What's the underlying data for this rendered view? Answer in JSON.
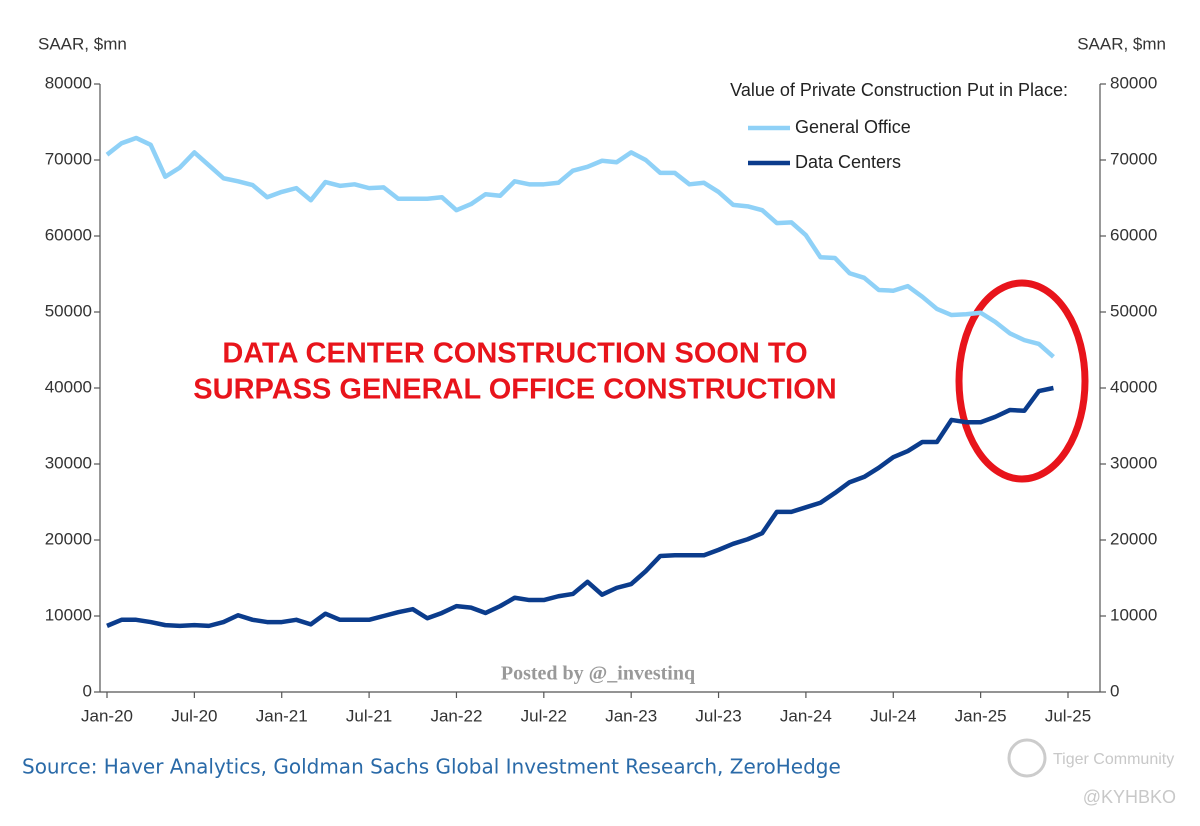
{
  "chart_data": {
    "type": "line",
    "y_label": "SAAR, $mn",
    "y2_label": "SAAR, $mn",
    "legend_title": "Value of Private Construction Put in Place:",
    "annotation": [
      "DATA CENTER CONSTRUCTION SOON TO",
      "SURPASS GENERAL OFFICE CONSTRUCTION"
    ],
    "source": "Source: Haver Analytics, Goldman Sachs Global Investment Research, ZeroHedge",
    "credit": "Posted by @_investinq",
    "watermark": "Tiger Community",
    "handle": "@KYHBKO",
    "x": [
      "2020-01",
      "2020-02",
      "2020-03",
      "2020-04",
      "2020-05",
      "2020-06",
      "2020-07",
      "2020-08",
      "2020-09",
      "2020-10",
      "2020-11",
      "2020-12",
      "2021-01",
      "2021-02",
      "2021-03",
      "2021-04",
      "2021-05",
      "2021-06",
      "2021-07",
      "2021-08",
      "2021-09",
      "2021-10",
      "2021-11",
      "2021-12",
      "2022-01",
      "2022-02",
      "2022-03",
      "2022-04",
      "2022-05",
      "2022-06",
      "2022-07",
      "2022-08",
      "2022-09",
      "2022-10",
      "2022-11",
      "2022-12",
      "2023-01",
      "2023-02",
      "2023-03",
      "2023-04",
      "2023-05",
      "2023-06",
      "2023-07",
      "2023-08",
      "2023-09",
      "2023-10",
      "2023-11",
      "2023-12",
      "2024-01",
      "2024-02",
      "2024-03",
      "2024-04",
      "2024-05",
      "2024-06",
      "2024-07",
      "2024-08",
      "2024-09",
      "2024-10",
      "2024-11",
      "2024-12",
      "2025-01",
      "2025-02",
      "2025-03",
      "2025-04",
      "2025-05",
      "2025-06"
    ],
    "series": [
      {
        "name": "General Office",
        "color": "#8fd1f7",
        "values": [
          70700,
          72200,
          72900,
          72000,
          67800,
          69000,
          71000,
          69300,
          67600,
          67200,
          66700,
          65100,
          65800,
          66300,
          64700,
          67100,
          66600,
          66800,
          66300,
          66400,
          64900,
          64900,
          64900,
          65100,
          63400,
          64200,
          65500,
          65300,
          67200,
          66800,
          66800,
          67000,
          68600,
          69100,
          69900,
          69700,
          71000,
          70000,
          68300,
          68300,
          66800,
          67000,
          65800,
          64100,
          63900,
          63400,
          61700,
          61800,
          60100,
          57200,
          57100,
          55100,
          54500,
          52900,
          52800,
          53400,
          52000,
          50400,
          49600,
          49700,
          49900,
          48700,
          47200,
          46300,
          45800,
          44100
        ]
      },
      {
        "name": "Data Centers",
        "color": "#0b3c8c",
        "values": [
          8700,
          9500,
          9500,
          9200,
          8800,
          8700,
          8800,
          8700,
          9200,
          10100,
          9500,
          9200,
          9200,
          9500,
          8900,
          10300,
          9500,
          9500,
          9500,
          10000,
          10500,
          10900,
          9700,
          10400,
          11300,
          11100,
          10400,
          11300,
          12400,
          12100,
          12100,
          12600,
          12900,
          14500,
          12800,
          13700,
          14200,
          15900,
          17900,
          18000,
          18000,
          18000,
          18700,
          19500,
          20100,
          20900,
          23700,
          23700,
          24300,
          24900,
          26200,
          27600,
          28300,
          29500,
          30900,
          31700,
          32900,
          32900,
          35800,
          35500,
          35500,
          36200,
          37100,
          37000,
          39600,
          40000
        ]
      }
    ],
    "xlim": [
      "2020-01",
      "2025-07"
    ],
    "xticks": [
      {
        "value": "2020-01",
        "label": "Jan-20"
      },
      {
        "value": "2020-07",
        "label": "Jul-20"
      },
      {
        "value": "2021-01",
        "label": "Jan-21"
      },
      {
        "value": "2021-07",
        "label": "Jul-21"
      },
      {
        "value": "2022-01",
        "label": "Jan-22"
      },
      {
        "value": "2022-07",
        "label": "Jul-22"
      },
      {
        "value": "2023-01",
        "label": "Jan-23"
      },
      {
        "value": "2023-07",
        "label": "Jul-23"
      },
      {
        "value": "2024-01",
        "label": "Jan-24"
      },
      {
        "value": "2024-07",
        "label": "Jul-24"
      },
      {
        "value": "2025-01",
        "label": "Jan-25"
      },
      {
        "value": "2025-07",
        "label": "Jul-25"
      }
    ],
    "ylim": [
      0,
      80000
    ],
    "yticks": [
      0,
      10000,
      20000,
      30000,
      40000,
      50000,
      60000,
      70000,
      80000
    ],
    "y2lim": [
      0,
      80000
    ],
    "y2ticks": [
      0,
      10000,
      20000,
      30000,
      40000,
      50000,
      60000,
      70000,
      80000
    ],
    "grid": false
  }
}
